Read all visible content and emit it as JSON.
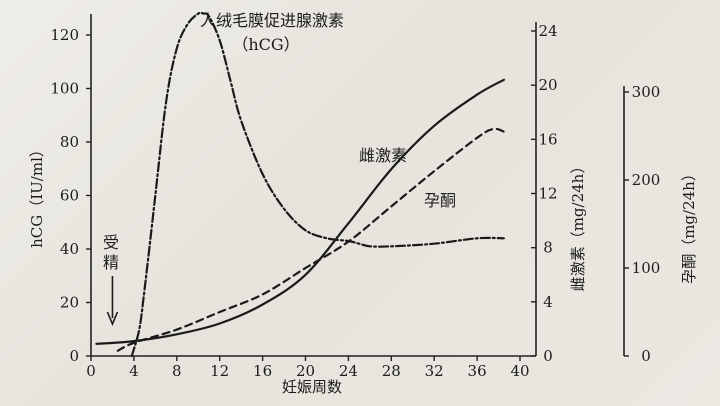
{
  "chart_data": {
    "type": "line",
    "xlabel": "妊娠周数",
    "x_ticks": [
      0,
      4,
      8,
      12,
      16,
      20,
      24,
      28,
      32,
      36,
      40
    ],
    "xlim": [
      0,
      40
    ],
    "axes": {
      "hcg": {
        "label": "hCG（IU/ml）",
        "ylim": [
          0,
          130
        ],
        "ticks": [
          0,
          20,
          40,
          60,
          80,
          100,
          120
        ]
      },
      "estrogen": {
        "label": "雌激素（mg/24h）",
        "ylim": [
          0,
          24
        ],
        "ticks": [
          0,
          4,
          8,
          12,
          16,
          20,
          24
        ]
      },
      "progesterone": {
        "label": "孕酮（mg/24h）",
        "ylim": [
          0,
          300
        ],
        "ticks": [
          0,
          100,
          200,
          300
        ]
      }
    },
    "series": [
      {
        "name": "人绒毛膜促进腺激素",
        "name2": "（hCG）",
        "axis": "hcg",
        "style": "dash-dot",
        "x": [
          3.8,
          4.5,
          5,
          6,
          7,
          8,
          9,
          10,
          10.5,
          11,
          12,
          13,
          14,
          16,
          18,
          20,
          22,
          24,
          25,
          26,
          28,
          32,
          36,
          38.5
        ],
        "y": [
          0,
          10,
          25,
          60,
          95,
          115,
          124,
          128,
          128,
          127,
          118,
          103,
          88,
          68,
          55,
          47,
          44,
          43,
          42,
          41,
          41,
          42,
          44,
          44
        ]
      },
      {
        "name": "雌激素",
        "axis": "estrogen",
        "style": "solid",
        "x": [
          0.5,
          4,
          8,
          12,
          16,
          20,
          24,
          28,
          32,
          36,
          38.5
        ],
        "y": [
          0.9,
          1.1,
          1.6,
          2.4,
          3.8,
          6,
          9.8,
          13.8,
          17,
          19.3,
          20.4
        ]
      },
      {
        "name": "孕酮",
        "axis": "progesterone",
        "style": "dashed",
        "x": [
          2.5,
          4,
          8,
          12,
          16,
          20,
          24,
          28,
          32,
          36,
          37.5,
          38.5
        ],
        "y": [
          6,
          15,
          30,
          50,
          70,
          100,
          130,
          170,
          210,
          248,
          258,
          255
        ]
      }
    ],
    "annotations": {
      "fertilization_line1": "受",
      "fertilization_line2": "精",
      "fertilization_x": 2
    }
  }
}
